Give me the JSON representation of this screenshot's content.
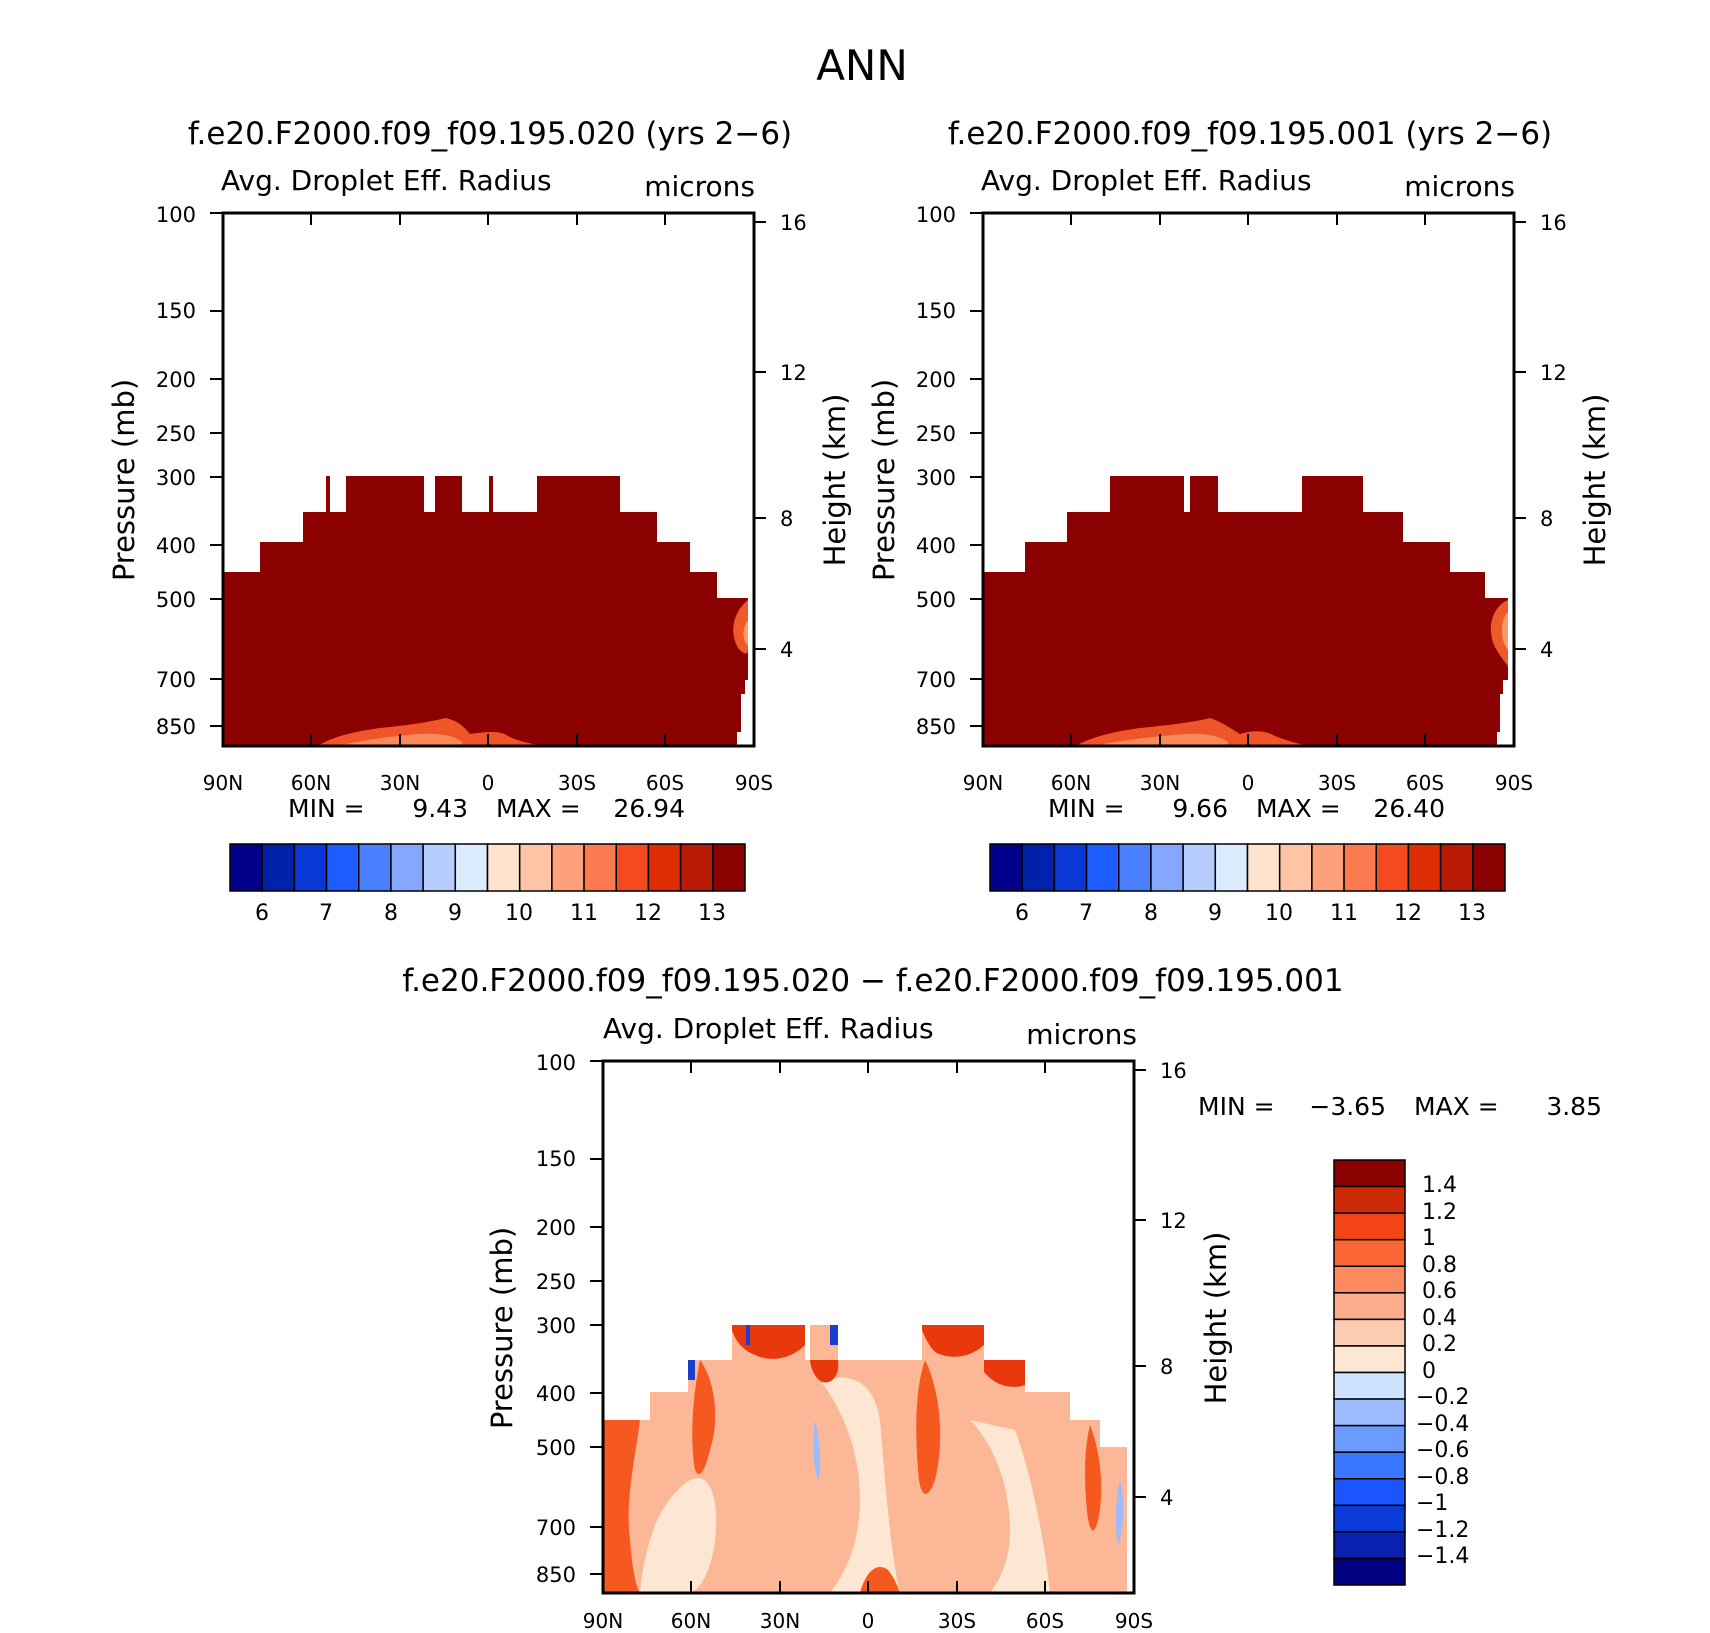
{
  "figure": {
    "title": "ANN"
  },
  "colors": {
    "abs_levels": [
      "#00008b",
      "#0022aa",
      "#0a38d6",
      "#1d5cff",
      "#4a7fff",
      "#85a7ff",
      "#b7ccff",
      "#dcecff",
      "#fee3cf",
      "#fdc4a6",
      "#fca07e",
      "#fb7a4f",
      "#f54a1f",
      "#de2e05",
      "#b81a03",
      "#8b0000"
    ],
    "diff_levels": [
      "#000080",
      "#0a20b0",
      "#0a3ad8",
      "#1a55ff",
      "#3a75ff",
      "#6a9bff",
      "#9cbcff",
      "#cfe2ff",
      "#fde7d3",
      "#fdcbb0",
      "#fcae8c",
      "#fb8a60",
      "#fb6637",
      "#f24414",
      "#cc2a06",
      "#8b0000"
    ]
  },
  "chart_data": [
    {
      "type": "heatmap",
      "title": "f.e20.F2000.f09_f09.195.020 (yrs 2−6)",
      "variable": "Avg. Droplet Eff. Radius",
      "units": "microns",
      "ylabel": "Pressure (mb)",
      "ylabel_right": "Height (km)",
      "x_ticks": [
        "90N",
        "60N",
        "30N",
        "0",
        "30S",
        "60S",
        "90S"
      ],
      "y_ticks": [
        "100",
        "150",
        "200",
        "250",
        "300",
        "400",
        "500",
        "700",
        "850"
      ],
      "y_ticks_right": [
        "16",
        "12",
        "8",
        "4"
      ],
      "ylim": [
        100,
        850
      ],
      "min_label": "MIN =",
      "min_value": "9.43",
      "max_label": "MAX =",
      "max_value": "26.94",
      "colorbar_labels": [
        "6",
        "7",
        "8",
        "9",
        "10",
        "11",
        "12",
        "13"
      ]
    },
    {
      "type": "heatmap",
      "title": "f.e20.F2000.f09_f09.195.001 (yrs 2−6)",
      "variable": "Avg. Droplet Eff. Radius",
      "units": "microns",
      "ylabel": "Pressure (mb)",
      "ylabel_right": "Height (km)",
      "x_ticks": [
        "90N",
        "60N",
        "30N",
        "0",
        "30S",
        "60S",
        "90S"
      ],
      "y_ticks": [
        "100",
        "150",
        "200",
        "250",
        "300",
        "400",
        "500",
        "700",
        "850"
      ],
      "y_ticks_right": [
        "16",
        "12",
        "8",
        "4"
      ],
      "ylim": [
        100,
        850
      ],
      "min_label": "MIN =",
      "min_value": "9.66",
      "max_label": "MAX =",
      "max_value": "26.40",
      "colorbar_labels": [
        "6",
        "7",
        "8",
        "9",
        "10",
        "11",
        "12",
        "13"
      ]
    },
    {
      "type": "heatmap",
      "title": "f.e20.F2000.f09_f09.195.020 − f.e20.F2000.f09_f09.195.001",
      "variable": "Avg. Droplet Eff. Radius",
      "units": "microns",
      "ylabel": "Pressure (mb)",
      "ylabel_right": "Height (km)",
      "x_ticks": [
        "90N",
        "60N",
        "30N",
        "0",
        "30S",
        "60S",
        "90S"
      ],
      "y_ticks": [
        "100",
        "150",
        "200",
        "250",
        "300",
        "400",
        "500",
        "700",
        "850"
      ],
      "y_ticks_right": [
        "16",
        "12",
        "8",
        "4"
      ],
      "ylim": [
        100,
        850
      ],
      "min_label": "MIN =",
      "min_value": "−3.65",
      "max_label": "MAX =",
      "max_value": "3.85",
      "colorbar_labels": [
        "1.4",
        "1.2",
        "1",
        "0.8",
        "0.6",
        "0.4",
        "0.2",
        "0",
        "−0.2",
        "−0.4",
        "−0.6",
        "−0.8",
        "−1",
        "−1.2",
        "−1.4"
      ]
    }
  ]
}
